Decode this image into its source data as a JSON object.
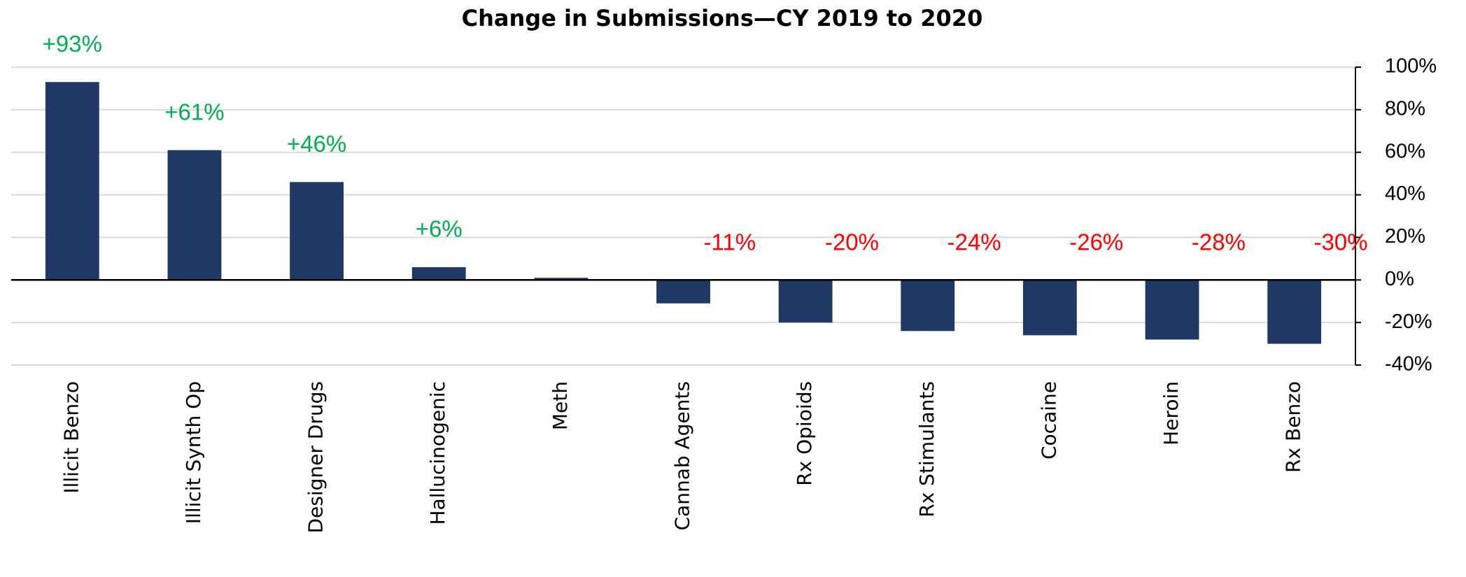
{
  "chart_data": {
    "type": "bar",
    "title": "Change in Submissions—CY 2019 to 2020",
    "categories": [
      "Illicit Benzo",
      "Illicit Synth Op",
      "Designer Drugs",
      "Hallucinogenic",
      "Meth",
      "Cannab Agents",
      "Rx Opioids",
      "Rx Stimulants",
      "Cocaine",
      "Heroin",
      "Rx Benzo"
    ],
    "values": [
      93,
      61,
      46,
      6,
      1,
      -11,
      -20,
      -24,
      -26,
      -28,
      -30
    ],
    "value_labels": [
      "+93%",
      "+61%",
      "+46%",
      "+6%",
      null,
      "-11%",
      "-20%",
      "-24%",
      "-26%",
      "-28%",
      "-30%"
    ],
    "color": "#1f3864",
    "positive_label_color": "#00b050",
    "negative_label_color": "#ff0000",
    "ylim": [
      -40,
      100
    ],
    "yticks": [
      {
        "value": -40,
        "label": "-40%"
      },
      {
        "value": -20,
        "label": "-20%"
      },
      {
        "value": 0,
        "label": "0%"
      },
      {
        "value": 20,
        "label": "20%"
      },
      {
        "value": 40,
        "label": "40%"
      },
      {
        "value": 60,
        "label": "60%"
      },
      {
        "value": 80,
        "label": "80%"
      },
      {
        "value": 100,
        "label": "100%"
      }
    ],
    "y_axis_side": "right",
    "grid": true
  }
}
